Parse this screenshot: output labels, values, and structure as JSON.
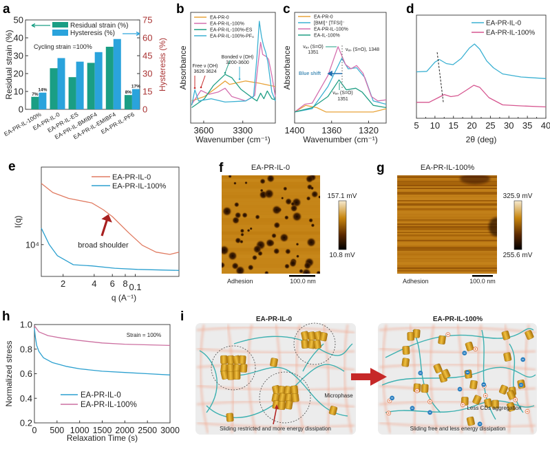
{
  "panels": {
    "labels": [
      "a",
      "b",
      "c",
      "d",
      "e",
      "f",
      "g",
      "h",
      "i"
    ]
  },
  "chart_data": [
    {
      "panel": "a",
      "type": "bar",
      "categories": [
        "EA-PR-IL-100%",
        "EA-PR-IL-0",
        "EA-PR-IL-ES",
        "EA-PR-IL-BMIBF4",
        "EA-PR-IL-EMIBF4",
        "EA-PR-IL-PF6"
      ],
      "series": [
        {
          "name": "Residual strain (%)",
          "axis": "left",
          "color": "#1a9e84",
          "values": [
            7,
            23,
            18,
            26,
            35,
            8
          ]
        },
        {
          "name": "Hysteresis (%)",
          "axis": "right",
          "color": "#2aa3dc",
          "values": [
            14,
            43,
            40,
            48,
            59,
            17
          ]
        }
      ],
      "ylabel": "Residual strain (%)",
      "ylim": [
        0,
        50
      ],
      "yticks": [
        0,
        10,
        20,
        30,
        40,
        50
      ],
      "y2label": "Hysteresis (%)",
      "y2lim": [
        0,
        75
      ],
      "y2ticks": [
        0,
        15,
        30,
        45,
        60,
        75
      ],
      "y2color": "#a83232",
      "annotation": "Cycling strain =100%",
      "data_labels": [
        "7%",
        "14%",
        "8%",
        "17%"
      ]
    },
    {
      "panel": "b",
      "type": "line",
      "xlabel": "Wavenumber (cm⁻¹)",
      "ylabel": "Absorbance",
      "xlim": [
        3700,
        3050
      ],
      "xticks": [
        3600,
        3300
      ],
      "ylim": [
        0,
        1
      ],
      "series": [
        {
          "name": "EA-PR-0",
          "color": "#e8a33a",
          "points": [
            [
              3692,
              0.2
            ],
            [
              3595,
              0.24
            ],
            [
              3507,
              0.315
            ],
            [
              3436,
              0.38
            ],
            [
              3402,
              0.35
            ],
            [
              3278,
              0.38
            ],
            [
              3173,
              0.36
            ],
            [
              3050,
              0.33
            ]
          ]
        },
        {
          "name": "EA-PR-IL-100%",
          "color": "#d46fae",
          "points": [
            [
              3692,
              0.17
            ],
            [
              3621,
              0.295
            ],
            [
              3560,
              0.26
            ],
            [
              3489,
              0.28
            ],
            [
              3436,
              0.315
            ],
            [
              3384,
              0.24
            ],
            [
              3278,
              0.2
            ],
            [
              3208,
              0.25
            ],
            [
              3187,
              0.49
            ],
            [
              3163,
              0.73
            ],
            [
              3147,
              0.62
            ],
            [
              3118,
              0.6
            ],
            [
              3102,
              0.575
            ],
            [
              3077,
              0.43
            ],
            [
              3050,
              0.24
            ]
          ]
        },
        {
          "name": "EA-PR-IL-100%-ES",
          "color": "#1f9e84",
          "points": [
            [
              3692,
              0.14
            ],
            [
              3595,
              0.22
            ],
            [
              3525,
              0.34
            ],
            [
              3436,
              0.44
            ],
            [
              3384,
              0.41
            ],
            [
              3314,
              0.305
            ],
            [
              3217,
              0.22
            ],
            [
              3191,
              0.2
            ],
            [
              3163,
              0.27
            ],
            [
              3138,
              0.22
            ],
            [
              3112,
              0.29
            ],
            [
              3077,
              0.22
            ],
            [
              3050,
              0.21
            ]
          ]
        },
        {
          "name": "EA-PR-IL-100%-PF₆",
          "color": "#3ab0d2",
          "points": [
            [
              3692,
              0.16
            ],
            [
              3668,
              0.3
            ],
            [
              3639,
              0.2
            ],
            [
              3542,
              0.22
            ],
            [
              3436,
              0.19
            ],
            [
              3278,
              0.2
            ],
            [
              3217,
              0.24
            ],
            [
              3191,
              0.6
            ],
            [
              3173,
              0.92
            ],
            [
              3156,
              0.78
            ],
            [
              3141,
              0.7
            ],
            [
              3124,
              0.64
            ],
            [
              3107,
              0.55
            ],
            [
              3077,
              0.28
            ],
            [
              3050,
              0.2
            ]
          ]
        }
      ],
      "annotations": [
        "Free ν (OH)",
        "3626 3624",
        "Bonded ν (OH)",
        "3200-3600"
      ]
    },
    {
      "panel": "c",
      "type": "line",
      "xlabel": "Wavenumber (cm⁻¹)",
      "ylabel": "Absorbance",
      "xlim": [
        1400,
        1301
      ],
      "xticks": [
        1400,
        1360,
        1320
      ],
      "ylim": [
        0,
        1
      ],
      "series": [
        {
          "name": "EA-PR-0",
          "color": "#e8a33a",
          "points": [
            [
              1400,
              0.1
            ],
            [
              1388,
              0.16
            ],
            [
              1376,
              0.14
            ],
            [
              1366,
              0.1
            ],
            [
              1339,
              0.1
            ],
            [
              1315,
              0.1
            ],
            [
              1301,
              0.13
            ]
          ]
        },
        {
          "name": "[BMI]⁺ [TFSI]⁻",
          "color": "#3ab0d2",
          "points": [
            [
              1400,
              0.1
            ],
            [
              1381,
              0.13
            ],
            [
              1364,
              0.33
            ],
            [
              1349,
              0.585
            ],
            [
              1342,
              0.49
            ],
            [
              1333,
              0.5
            ],
            [
              1324,
              0.41
            ],
            [
              1315,
              0.2
            ],
            [
              1301,
              0.17
            ]
          ]
        },
        {
          "name": "EA-PR-IL-100%",
          "color": "#d46fae",
          "points": [
            [
              1400,
              0.1
            ],
            [
              1389,
              0.17
            ],
            [
              1381,
              0.18
            ],
            [
              1364,
              0.43
            ],
            [
              1353,
              0.69
            ],
            [
              1345,
              0.53
            ],
            [
              1339,
              0.49
            ],
            [
              1333,
              0.52
            ],
            [
              1326,
              0.45
            ],
            [
              1317,
              0.24
            ],
            [
              1310,
              0.2
            ],
            [
              1301,
              0.21
            ]
          ]
        },
        {
          "name": "EA-IL-100%",
          "color": "#1f9e84",
          "points": [
            [
              1400,
              0.1
            ],
            [
              1381,
              0.14
            ],
            [
              1364,
              0.24
            ],
            [
              1352,
              0.39
            ],
            [
              1344,
              0.3
            ],
            [
              1334,
              0.315
            ],
            [
              1327,
              0.28
            ],
            [
              1315,
              0.16
            ],
            [
              1301,
              0.14
            ]
          ]
        }
      ],
      "annotations": [
        "νₐₛ (S=O)",
        "1351",
        "νₐₛ (S=O), 1348",
        "Blue shift",
        "νₐₛ (S=O)",
        "1351"
      ]
    },
    {
      "panel": "d",
      "type": "line",
      "xlabel": "2θ (deg)",
      "xlim": [
        5,
        40
      ],
      "xticks": [
        5,
        10,
        15,
        20,
        25,
        30,
        35,
        40
      ],
      "ylim": [
        0,
        1
      ],
      "series": [
        {
          "name": "EA-PR-IL-0",
          "color": "#3ab0d2",
          "points": [
            [
              5,
              0.45
            ],
            [
              7.8,
              0.455
            ],
            [
              10.0,
              0.545
            ],
            [
              11.2,
              0.57
            ],
            [
              13.1,
              0.53
            ],
            [
              14.9,
              0.52
            ],
            [
              17.1,
              0.58
            ],
            [
              19.3,
              0.68
            ],
            [
              20.7,
              0.72
            ],
            [
              22.1,
              0.67
            ],
            [
              24.0,
              0.555
            ],
            [
              25.8,
              0.49
            ],
            [
              28.3,
              0.43
            ],
            [
              33.3,
              0.4
            ],
            [
              40,
              0.385
            ]
          ]
        },
        {
          "name": "EA-PR-IL-100%",
          "color": "#d6558f",
          "points": [
            [
              5,
              0.155
            ],
            [
              8.4,
              0.155
            ],
            [
              10.9,
              0.2
            ],
            [
              12.5,
              0.23
            ],
            [
              14.3,
              0.21
            ],
            [
              16.2,
              0.22
            ],
            [
              18.4,
              0.27
            ],
            [
              20.5,
              0.32
            ],
            [
              22.1,
              0.3
            ],
            [
              24.6,
              0.2
            ],
            [
              28.3,
              0.13
            ],
            [
              33.3,
              0.12
            ],
            [
              40,
              0.11
            ]
          ]
        }
      ],
      "guide_line": [
        [
          10.6,
          0.64
        ],
        [
          12.3,
          0.145
        ]
      ]
    },
    {
      "panel": "e",
      "type": "line",
      "xlabel": "q (A⁻¹)",
      "ylabel": "I(q)",
      "xscale": "log",
      "yscale": "log",
      "xlim": [
        0.0123,
        0.265
      ],
      "ylim": [
        4915,
        56500
      ],
      "xticks": [
        0.02,
        0.04,
        0.06,
        0.08,
        0.1
      ],
      "xtick_labels": [
        "2",
        "4",
        "6",
        "8",
        "0.1"
      ],
      "yticks": [
        10000
      ],
      "ytick_labels": [
        "10⁴"
      ],
      "series": [
        {
          "name": "EA-PR-IL-0",
          "color": "#e07a60",
          "points": [
            [
              0.0123,
              39200
            ],
            [
              0.0159,
              32000
            ],
            [
              0.0226,
              28100
            ],
            [
              0.0379,
              25400
            ],
            [
              0.049,
              21800
            ],
            [
              0.06,
              18700
            ],
            [
              0.0859,
              13100
            ],
            [
              0.117,
              9850
            ],
            [
              0.159,
              8450
            ],
            [
              0.216,
              8030
            ],
            [
              0.265,
              8450
            ]
          ]
        },
        {
          "name": "EA-PR-IL-100%",
          "color": "#2a9fcf",
          "points": [
            [
              0.0123,
              14450
            ],
            [
              0.0147,
              10000
            ],
            [
              0.0176,
              7820
            ],
            [
              0.0251,
              6380
            ],
            [
              0.0379,
              6220
            ],
            [
              0.0632,
              5900
            ],
            [
              0.105,
              5750
            ],
            [
              0.265,
              5620
            ]
          ]
        }
      ],
      "annotation": "broad shoulder"
    },
    {
      "panel": "h",
      "type": "line",
      "xlabel": "Relaxation Time (s)",
      "ylabel": "Normalized stress",
      "xlim": [
        0,
        3000
      ],
      "xticks": [
        0,
        500,
        1000,
        1500,
        2000,
        2500,
        3000
      ],
      "ylim": [
        0.2,
        1.0
      ],
      "yticks": [
        0.2,
        0.4,
        0.6,
        0.8,
        1.0
      ],
      "ytick_labels": [
        "0.2",
        "0.4",
        "0.6",
        "0.8",
        "1.0"
      ],
      "series": [
        {
          "name": "EA-PR-IL-0",
          "color": "#2a9fcf",
          "points": [
            [
              0,
              0.97
            ],
            [
              20,
              0.9
            ],
            [
              50,
              0.83
            ],
            [
              100,
              0.78
            ],
            [
              200,
              0.73
            ],
            [
              400,
              0.69
            ],
            [
              700,
              0.66
            ],
            [
              1000,
              0.64
            ],
            [
              1500,
              0.62
            ],
            [
              2000,
              0.61
            ],
            [
              2500,
              0.6
            ],
            [
              3000,
              0.59
            ]
          ]
        },
        {
          "name": "EA-PR-IL-100%",
          "color": "#cc6fa0",
          "points": [
            [
              0,
              0.99
            ],
            [
              100,
              0.94
            ],
            [
              300,
              0.91
            ],
            [
              600,
              0.89
            ],
            [
              1000,
              0.87
            ],
            [
              1500,
              0.85
            ],
            [
              2000,
              0.84
            ],
            [
              2500,
              0.835
            ],
            [
              3000,
              0.83
            ]
          ]
        }
      ],
      "annotation": "Strain = 100%"
    }
  ],
  "afm": {
    "f": {
      "title": "EA-PR-IL-0",
      "colorbar_max": "157.1 mV",
      "colorbar_min": "10.8 mV",
      "channel": "Adhesion",
      "scalebar": "100.0 nm"
    },
    "g": {
      "title": "EA-PR-IL-100%",
      "colorbar_max": "325.9 mV",
      "colorbar_min": "255.6 mV",
      "channel": "Adhesion",
      "scalebar": "100.0 nm"
    }
  },
  "schematic": {
    "left_title": "EA-PR-IL-0",
    "right_title": "EA-PR-IL-100%",
    "microphase": "Microphase",
    "left_caption": "Sliding restricted and more energy dissipation",
    "less_cd": "Less CDs aggregation",
    "right_caption": "Sliding free and less energy dissipation",
    "colors": {
      "chain": "#3bb0b0",
      "cd": "#e0a830",
      "network": "#f0a890",
      "anion": "#2a7fc0",
      "cation": "#e07040"
    }
  }
}
